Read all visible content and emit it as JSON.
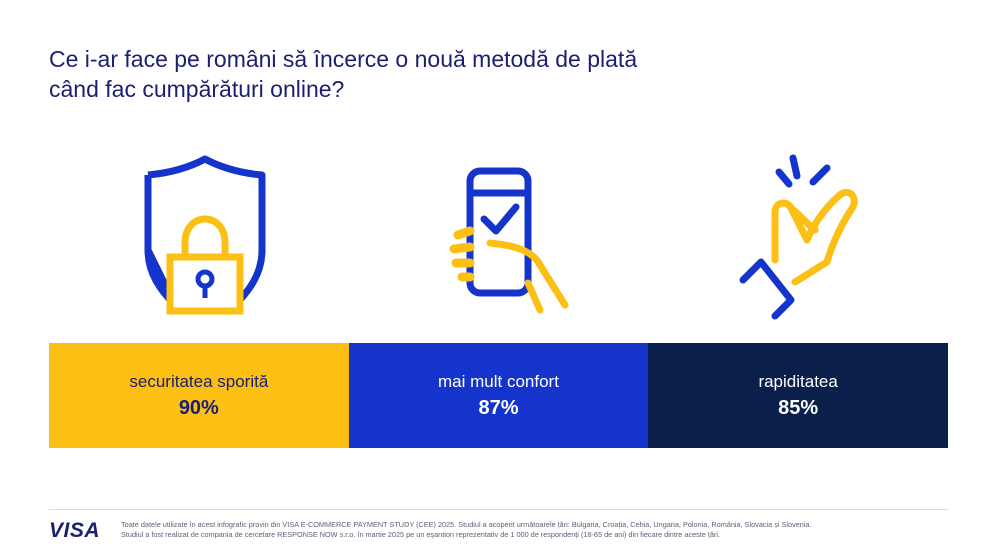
{
  "title": {
    "line1": "Ce i-ar face pe români să încerce o nouă metodă de plată",
    "line2": "când fac cumpărături online?"
  },
  "colors": {
    "navy": "#1a1f71",
    "blue": "#1434cb",
    "yellow": "#fcc015",
    "dark_navy": "#0b1f4b"
  },
  "icons": [
    "shield-lock-icon",
    "phone-check-icon",
    "finger-snap-icon"
  ],
  "reasons": [
    {
      "label": "securitatea sporită",
      "value": "90%",
      "percent": 90
    },
    {
      "label": "mai mult confort",
      "value": "87%",
      "percent": 87
    },
    {
      "label": "rapiditatea",
      "value": "85%",
      "percent": 85
    }
  ],
  "footer": {
    "logo": "VISA",
    "note_line1": "Toate datele utilizate în acest infografic provin din VISA E-COMMERCE PAYMENT STUDY (CEE) 2025. Studiul a acoperit următoarele țări: Bulgaria, Croația, Cehia, Ungaria, Polonia, România, Slovacia și Slovenia.",
    "note_line2": "Studiul a fost realizat de compania de cercetare RESPONSE NOW s.r.o. în martie 2025 pe un eșantion reprezentativ de 1 000 de respondenți (18-65 de ani) din fiecare dintre aceste țări."
  }
}
